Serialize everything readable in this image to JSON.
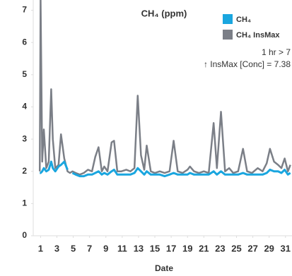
{
  "chart_data": {
    "type": "line",
    "title": "CH₄ (ppm)",
    "x_label": "Date",
    "annotations": [
      "1 hr > 7",
      "↑ InsMax [Conc] = 7.38"
    ],
    "x": [
      0.9,
      1.0,
      1.2,
      1.4,
      1.7,
      2.0,
      2.3,
      2.5,
      2.8,
      3.2,
      3.5,
      3.9,
      4.3,
      4.6,
      4.9,
      5.3,
      5.8,
      6.3,
      6.8,
      7.3,
      7.7,
      8.1,
      8.5,
      8.8,
      9.2,
      9.7,
      10.0,
      10.4,
      10.9,
      11.5,
      12.0,
      12.5,
      12.9,
      13.3,
      13.7,
      14.0,
      14.5,
      15.0,
      15.6,
      16.2,
      16.8,
      17.3,
      17.8,
      18.4,
      19.0,
      19.3,
      19.8,
      20.4,
      21.0,
      21.6,
      22.2,
      22.6,
      23.1,
      23.6,
      24.1,
      24.6,
      25.2,
      25.8,
      26.3,
      26.9,
      27.6,
      28.2,
      28.7,
      29.1,
      29.6,
      30.1,
      30.5,
      30.9,
      31.3,
      31.6
    ],
    "series": [
      {
        "name": "CH₄ InsMax",
        "color": "#7b7f87",
        "values": [
          2.0,
          7.38,
          2.3,
          3.3,
          2.1,
          2.3,
          4.55,
          3.0,
          2.1,
          2.2,
          3.15,
          2.4,
          2.0,
          1.95,
          2.0,
          1.95,
          1.9,
          1.95,
          2.05,
          2.0,
          2.45,
          2.75,
          2.0,
          2.15,
          2.0,
          2.9,
          2.95,
          2.0,
          2.0,
          2.05,
          2.0,
          2.1,
          4.35,
          2.5,
          2.05,
          2.8,
          2.0,
          1.95,
          2.0,
          1.95,
          2.0,
          2.95,
          2.0,
          1.95,
          2.05,
          2.15,
          2.0,
          1.95,
          2.0,
          1.95,
          3.5,
          2.1,
          3.85,
          2.0,
          2.1,
          1.95,
          2.0,
          2.7,
          2.0,
          1.95,
          2.1,
          2.0,
          2.25,
          2.7,
          2.3,
          2.2,
          2.1,
          2.4,
          2.0,
          2.2
        ]
      },
      {
        "name": "CH₄",
        "color": "#1aa6df",
        "values": [
          1.95,
          1.95,
          2.0,
          2.1,
          2.0,
          2.05,
          2.3,
          2.1,
          2.0,
          2.15,
          2.2,
          2.3,
          2.05,
          null,
          1.95,
          1.9,
          1.85,
          1.85,
          1.9,
          1.9,
          1.95,
          2.0,
          1.9,
          1.95,
          1.9,
          2.0,
          2.05,
          1.9,
          1.9,
          1.9,
          1.9,
          1.95,
          2.1,
          2.0,
          1.9,
          2.0,
          1.9,
          1.9,
          1.9,
          1.85,
          1.9,
          1.95,
          1.9,
          1.9,
          1.9,
          1.95,
          1.9,
          1.9,
          1.9,
          1.9,
          2.0,
          1.9,
          2.0,
          1.9,
          1.9,
          1.9,
          1.9,
          1.95,
          1.9,
          1.9,
          1.9,
          1.9,
          1.95,
          2.05,
          2.0,
          2.0,
          1.95,
          2.05,
          1.9,
          1.95
        ]
      }
    ],
    "legend_order": [
      1,
      0
    ],
    "xlim": [
      0.1,
      31.8
    ],
    "ylim": [
      0,
      7.1
    ],
    "xticks": [
      1,
      3,
      5,
      7,
      9,
      11,
      13,
      15,
      17,
      19,
      21,
      23,
      25,
      27,
      29,
      31
    ],
    "yticks": [
      0,
      1,
      2,
      3,
      4,
      5,
      6,
      7
    ]
  }
}
